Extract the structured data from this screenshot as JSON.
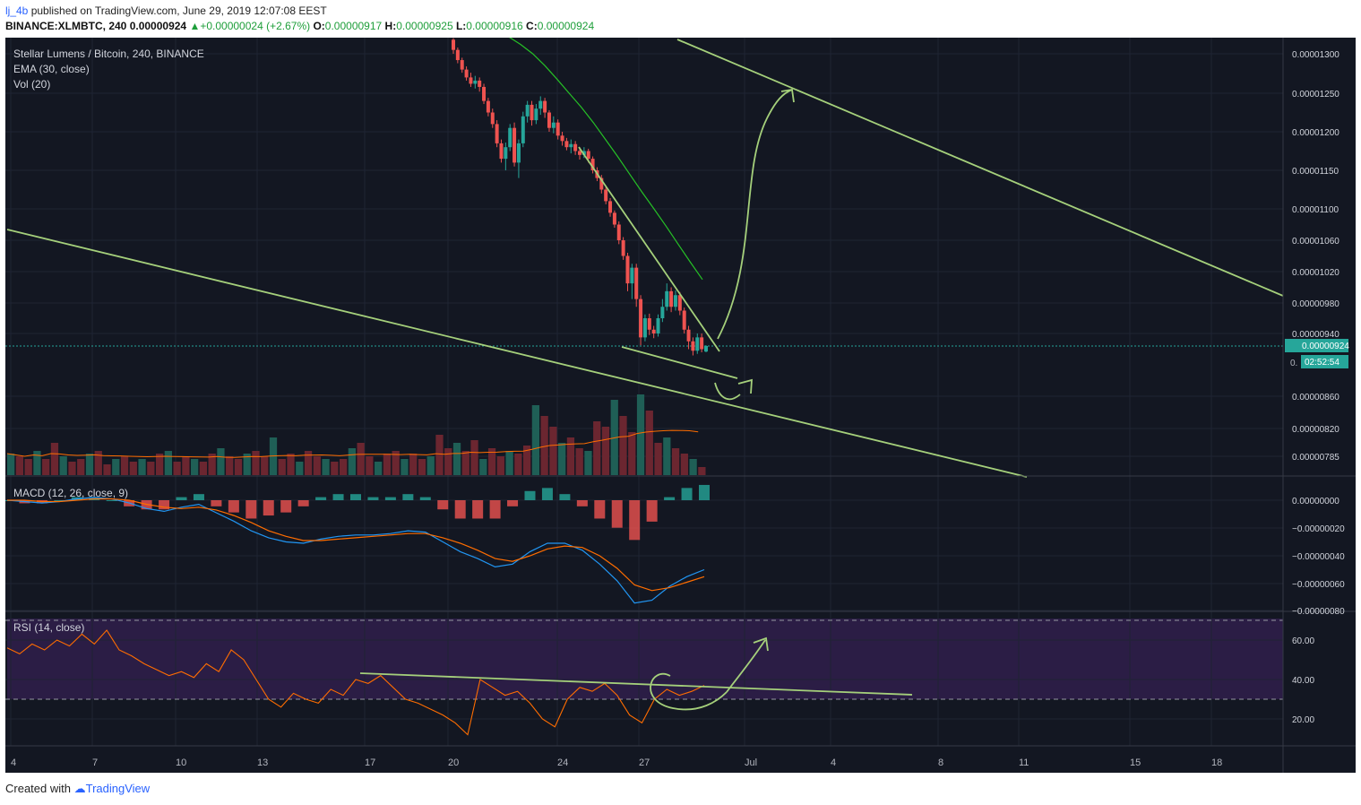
{
  "header": {
    "user": "lj_4b",
    "published": "published on TradingView.com, June 29, 2019 12:07:08 EEST",
    "symbol": "BINANCE:XLMBTC, 240",
    "last": "0.00000924",
    "change": "+0.00000024 (+2.67%)",
    "o_label": "O:",
    "o": "0.00000917",
    "h_label": "H:",
    "h": "0.00000925",
    "l_label": "L:",
    "l": "0.00000916",
    "c_label": "C:",
    "c": "0.00000924"
  },
  "legend": {
    "title": "Stellar Lumens / Bitcoin, 240, BINANCE",
    "ema": "EMA (30, close)",
    "vol": "Vol (20)",
    "macd": "MACD (12, 26, close, 9)",
    "rsi": "RSI (14, close)"
  },
  "price_badge": {
    "value": "0.00000924",
    "countdown": "02:52:54",
    "partial": "0."
  },
  "footer": {
    "created": "Created with",
    "brand": "TradingView"
  },
  "colors": {
    "background": "#131722",
    "grid": "#1f2433",
    "up": "#26a69a",
    "down": "#ef5350",
    "ema": "#26c026",
    "trendline": "#a5d07b",
    "macd": "#2196f3",
    "signal": "#ff6d00",
    "rsi": "#ff6d00",
    "rsi_band": "#2b1d45",
    "badge": "#26a69a"
  },
  "chart_data": [
    {
      "type": "candlestick",
      "title": "Stellar Lumens / Bitcoin, 240, BINANCE",
      "x_ticks": [
        "4",
        "7",
        "10",
        "13",
        "17",
        "20",
        "24",
        "27",
        "Jul",
        "4",
        "8",
        "11",
        "15",
        "18"
      ],
      "y_ticks": [
        "0.00001300",
        "0.00001250",
        "0.00001200",
        "0.00001150",
        "0.00001100",
        "0.00001060",
        "0.00001020",
        "0.00000980",
        "0.00000940",
        "0.00000860",
        "0.00000820",
        "0.00000785"
      ],
      "last_price": 9.24e-06,
      "candles_ohlc": [
        [
          1318,
          1305,
          1320,
          1300
        ],
        [
          1305,
          1292,
          1308,
          1288
        ],
        [
          1292,
          1280,
          1295,
          1276
        ],
        [
          1280,
          1270,
          1284,
          1266
        ],
        [
          1270,
          1262,
          1276,
          1258
        ],
        [
          1262,
          1266,
          1272,
          1256
        ],
        [
          1266,
          1258,
          1270,
          1252
        ],
        [
          1258,
          1240,
          1262,
          1236
        ],
        [
          1240,
          1225,
          1244,
          1220
        ],
        [
          1225,
          1210,
          1230,
          1205
        ],
        [
          1210,
          1185,
          1215,
          1180
        ],
        [
          1185,
          1165,
          1190,
          1160
        ],
        [
          1165,
          1180,
          1186,
          1150
        ],
        [
          1180,
          1205,
          1210,
          1175
        ],
        [
          1205,
          1160,
          1212,
          1155
        ],
        [
          1160,
          1185,
          1190,
          1140
        ],
        [
          1185,
          1220,
          1226,
          1180
        ],
        [
          1220,
          1235,
          1240,
          1212
        ],
        [
          1235,
          1215,
          1240,
          1208
        ],
        [
          1215,
          1230,
          1236,
          1210
        ],
        [
          1230,
          1240,
          1246,
          1222
        ],
        [
          1240,
          1225,
          1244,
          1218
        ],
        [
          1225,
          1205,
          1228,
          1200
        ],
        [
          1205,
          1212,
          1220,
          1198
        ],
        [
          1212,
          1195,
          1216,
          1190
        ],
        [
          1195,
          1188,
          1200,
          1182
        ],
        [
          1188,
          1180,
          1192,
          1176
        ],
        [
          1180,
          1184,
          1190,
          1172
        ],
        [
          1184,
          1175,
          1188,
          1170
        ],
        [
          1175,
          1170,
          1180,
          1164
        ],
        [
          1170,
          1175,
          1180,
          1166
        ],
        [
          1175,
          1165,
          1178,
          1160
        ],
        [
          1165,
          1150,
          1168,
          1146
        ],
        [
          1150,
          1140,
          1154,
          1136
        ],
        [
          1140,
          1125,
          1144,
          1120
        ],
        [
          1125,
          1110,
          1128,
          1106
        ],
        [
          1110,
          1095,
          1114,
          1090
        ],
        [
          1095,
          1080,
          1098,
          1076
        ],
        [
          1080,
          1060,
          1084,
          1055
        ],
        [
          1060,
          1040,
          1064,
          1035
        ],
        [
          1040,
          1005,
          1044,
          995
        ],
        [
          1005,
          1025,
          1030,
          985
        ],
        [
          1025,
          985,
          1030,
          975
        ],
        [
          985,
          935,
          990,
          925
        ],
        [
          935,
          960,
          965,
          930
        ],
        [
          960,
          945,
          966,
          938
        ],
        [
          945,
          940,
          950,
          934
        ],
        [
          940,
          960,
          965,
          936
        ],
        [
          960,
          975,
          985,
          955
        ],
        [
          975,
          995,
          1005,
          970
        ],
        [
          995,
          975,
          1000,
          968
        ],
        [
          975,
          990,
          996,
          970
        ],
        [
          990,
          970,
          994,
          964
        ],
        [
          970,
          945,
          974,
          940
        ],
        [
          945,
          930,
          950,
          920
        ],
        [
          930,
          918,
          935,
          912
        ],
        [
          918,
          935,
          940,
          914
        ],
        [
          935,
          920,
          940,
          916
        ],
        [
          917,
          924,
          925,
          916
        ]
      ],
      "ema_30": [
        1330,
        1322,
        1312,
        1300,
        1285,
        1268,
        1250,
        1232,
        1212,
        1190,
        1168,
        1145,
        1122,
        1100,
        1078,
        1055,
        1032,
        1010
      ],
      "volume": [
        8,
        7,
        6,
        9,
        6,
        12,
        7,
        5,
        6,
        8,
        9,
        4,
        6,
        7,
        5,
        6,
        5,
        8,
        9,
        5,
        7,
        6,
        5,
        8,
        10,
        7,
        6,
        8,
        9,
        7,
        14,
        6,
        8,
        5,
        9,
        7,
        6,
        5,
        6,
        10,
        12,
        7,
        5,
        8,
        9,
        6,
        8,
        6,
        7,
        15,
        10,
        12,
        9,
        13,
        6,
        10,
        7,
        9,
        8,
        11,
        26,
        22,
        18,
        12,
        14,
        10,
        9,
        20,
        18,
        28,
        22,
        16,
        30,
        24,
        12,
        14,
        10,
        8,
        6,
        3
      ]
    },
    {
      "type": "line",
      "title": "MACD (12, 26, close, 9)",
      "y_ticks": [
        "0.00000000",
        "−0.00000020",
        "−0.00000040",
        "−0.00000060",
        "−0.00000080"
      ],
      "macd": [
        0,
        -1,
        -2,
        -1,
        1,
        2,
        1,
        -2,
        -6,
        -8,
        -5,
        -3,
        -9,
        -15,
        -22,
        -27,
        -30,
        -31,
        -28,
        -26,
        -25,
        -25,
        -24,
        -22,
        -23,
        -30,
        -37,
        -42,
        -48,
        -46,
        -37,
        -31,
        -31,
        -36,
        -46,
        -58,
        -74,
        -72,
        -62,
        -55,
        -50
      ],
      "signal": [
        0,
        0,
        -1,
        -1,
        0,
        1,
        1,
        0,
        -3,
        -5,
        -6,
        -5,
        -7,
        -11,
        -16,
        -22,
        -26,
        -29,
        -29,
        -28,
        -27,
        -26,
        -25,
        -24,
        -24,
        -27,
        -31,
        -36,
        -42,
        -44,
        -40,
        -35,
        -33,
        -34,
        -40,
        -49,
        -61,
        -65,
        -63,
        -59,
        -55
      ]
    },
    {
      "type": "line",
      "title": "RSI (14, close)",
      "y_ticks": [
        "60.00",
        "40.00",
        "20.00"
      ],
      "bands": [
        70,
        30
      ],
      "rsi": [
        56,
        53,
        58,
        55,
        60,
        57,
        63,
        58,
        65,
        55,
        52,
        48,
        45,
        42,
        44,
        41,
        48,
        44,
        55,
        50,
        40,
        30,
        26,
        33,
        30,
        28,
        35,
        32,
        40,
        38,
        42,
        36,
        30,
        28,
        25,
        22,
        18,
        12,
        40,
        36,
        32,
        34,
        28,
        20,
        16,
        30,
        36,
        34,
        38,
        32,
        22,
        18,
        30,
        35,
        32,
        34,
        37
      ]
    }
  ]
}
